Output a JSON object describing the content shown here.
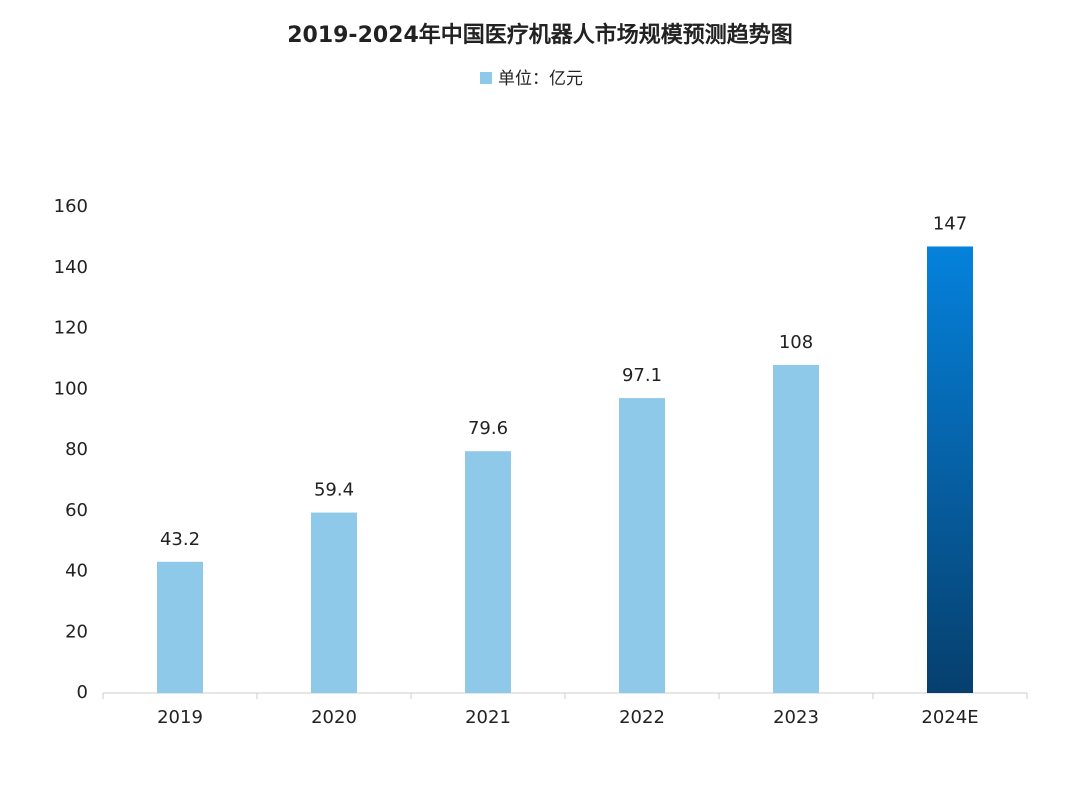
{
  "chart_data": {
    "type": "bar",
    "title": "2019-2024年中国医疗机器人市场规模预测趋势图",
    "categories": [
      "2019",
      "2020",
      "2021",
      "2022",
      "2023",
      "2024E"
    ],
    "series": [
      {
        "name": "单位：亿元",
        "color": "#8ec9ea",
        "values": [
          43.2,
          59.4,
          79.6,
          97.1,
          108,
          147
        ],
        "bar_gradients": [
          [
            "#8ec9ea",
            "#8ec9ea"
          ],
          [
            "#8ec9ea",
            "#8ec9ea"
          ],
          [
            "#8ec9ea",
            "#8ec9ea"
          ],
          [
            "#8ec9ea",
            "#8ec9ea"
          ],
          [
            "#8ec9ea",
            "#8ec9ea"
          ],
          [
            "#0582dc",
            "#063f6d"
          ]
        ]
      }
    ],
    "ylim": [
      0,
      160
    ],
    "yticks": [
      0,
      20,
      40,
      60,
      80,
      100,
      120,
      140,
      160
    ],
    "grid": false,
    "legend": "top"
  }
}
